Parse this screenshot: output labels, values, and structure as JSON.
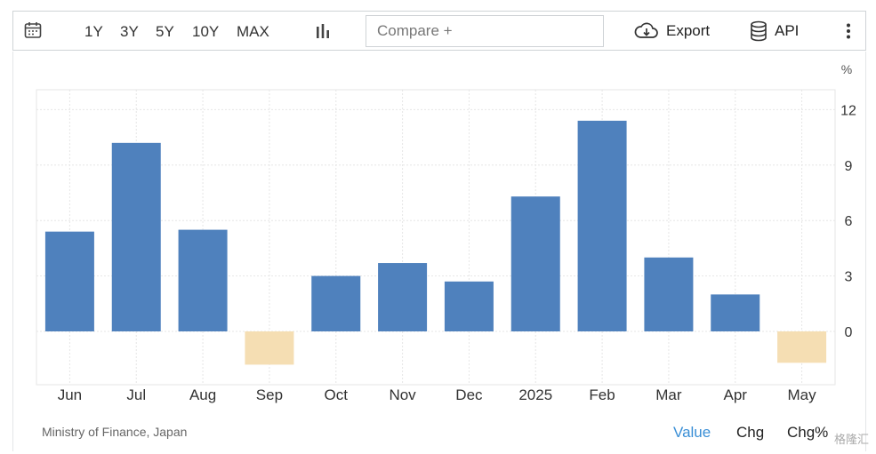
{
  "toolbar": {
    "ranges": [
      "1Y",
      "3Y",
      "5Y",
      "10Y",
      "MAX"
    ],
    "compare_placeholder": "Compare +",
    "export_label": "Export",
    "api_label": "API",
    "icons": [
      "calendar-icon",
      "bar-chart-icon",
      "cloud-download-icon",
      "database-icon",
      "kebab-menu-icon"
    ]
  },
  "footer": {
    "source": "Ministry of Finance, Japan",
    "tabs": [
      "Value",
      "Chg",
      "Chg%"
    ],
    "active_tab": "Value",
    "watermark": "格隆汇"
  },
  "colors": {
    "positive": "#4f81bd",
    "negative": "#f5deb3",
    "active_tab": "#3a8fd6",
    "grid": "#e6e6e6"
  },
  "chart_data": {
    "type": "bar",
    "categories": [
      "Jun",
      "Jul",
      "Aug",
      "Sep",
      "Oct",
      "Nov",
      "Dec",
      "2025",
      "Feb",
      "Mar",
      "Apr",
      "May"
    ],
    "values": [
      5.4,
      10.2,
      5.5,
      -1.8,
      3.0,
      3.7,
      2.7,
      7.3,
      11.4,
      4.0,
      2.0,
      -1.7
    ],
    "unit": "%",
    "y_ticks": [
      0,
      3,
      6,
      9,
      12
    ],
    "ylim": [
      -3.0,
      12.8
    ],
    "grid": true,
    "y_axis_side": "right"
  }
}
